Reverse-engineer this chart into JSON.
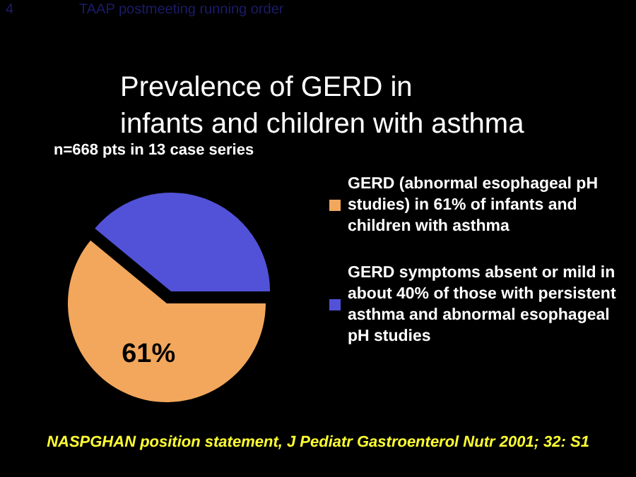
{
  "chart_data": {
    "type": "pie",
    "title": "Prevalence of GERD in\ninfants and children with asthma",
    "subtitle": "n=668 pts in 13 case series",
    "categories": [
      "GERD (abnormal esophageal pH studies) in 61% of infants and children with asthma",
      "GERD symptoms absent or mild in about 40% of those with persistent asthma and abnormal esophageal pH studies"
    ],
    "values": [
      61,
      39
    ],
    "colors": [
      "#f2a75c",
      "#5252d8"
    ],
    "value_labels": [
      "61%",
      null
    ],
    "legend": "right",
    "annotations": [
      "4",
      "TAAP postmeeting running order",
      "NASPGHAN position statement, J Pediatr Gastroenterol Nutr 2001; 32: S1"
    ]
  }
}
